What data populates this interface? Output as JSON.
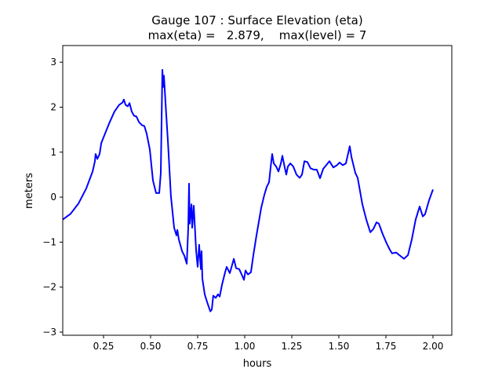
{
  "chart_data": {
    "type": "line",
    "title_line1": "Gauge 107 : Surface Elevation (eta)",
    "title_line2": "max(eta) =   2.879,    max(level) = 7",
    "xlabel": "hours",
    "ylabel": "meters",
    "xlim": [
      0.0333,
      2.1
    ],
    "ylim": [
      -3.07,
      3.37
    ],
    "xticks": [
      0.25,
      0.5,
      0.75,
      1.0,
      1.25,
      1.5,
      1.75,
      2.0
    ],
    "xtick_labels": [
      "0.25",
      "0.50",
      "0.75",
      "1.00",
      "1.25",
      "1.50",
      "1.75",
      "2.00"
    ],
    "yticks": [
      3,
      2,
      1,
      0,
      -1,
      -2,
      -3
    ],
    "ytick_labels": [
      "3",
      "2",
      "1",
      "0",
      "−1",
      "−2",
      "−3"
    ],
    "grid": false,
    "series": [
      {
        "name": "eta",
        "color": "#0000ff",
        "x": [
          0.033,
          0.075,
          0.117,
          0.158,
          0.192,
          0.204,
          0.208,
          0.217,
          0.229,
          0.238,
          0.258,
          0.283,
          0.308,
          0.333,
          0.35,
          0.358,
          0.367,
          0.379,
          0.388,
          0.4,
          0.412,
          0.425,
          0.438,
          0.454,
          0.467,
          0.479,
          0.496,
          0.5125,
          0.529,
          0.546,
          0.554,
          0.5625,
          0.567,
          0.571,
          0.579,
          0.592,
          0.608,
          0.625,
          0.6375,
          0.642,
          0.65,
          0.667,
          0.679,
          0.692,
          0.7,
          0.704,
          0.708,
          0.717,
          0.721,
          0.729,
          0.742,
          0.75,
          0.758,
          0.767,
          0.771,
          0.775,
          0.7875,
          0.8,
          0.817,
          0.825,
          0.833,
          0.846,
          0.858,
          0.867,
          0.879,
          0.896,
          0.904,
          0.921,
          0.933,
          0.942,
          0.954,
          0.971,
          0.988,
          0.996,
          1.004,
          1.017,
          1.033,
          1.046,
          1.0625,
          1.0875,
          1.104,
          1.117,
          1.129,
          1.1375,
          1.146,
          1.154,
          1.167,
          1.179,
          1.192,
          1.2,
          1.2125,
          1.221,
          1.229,
          1.242,
          1.258,
          1.275,
          1.292,
          1.304,
          1.317,
          1.333,
          1.35,
          1.367,
          1.383,
          1.4,
          1.417,
          1.433,
          1.45,
          1.471,
          1.49,
          1.504,
          1.521,
          1.5375,
          1.558,
          1.567,
          1.5875,
          1.6,
          1.625,
          1.646,
          1.667,
          1.683,
          1.7,
          1.7125,
          1.733,
          1.754,
          1.771,
          1.783,
          1.804,
          1.825,
          1.846,
          1.867,
          1.8875,
          1.908,
          1.929,
          1.946,
          1.958,
          1.979,
          2.0
        ],
        "y": [
          -0.5,
          -0.37,
          -0.14,
          0.19,
          0.57,
          0.8,
          0.96,
          0.85,
          0.96,
          1.2,
          1.41,
          1.67,
          1.9,
          2.05,
          2.1,
          2.17,
          2.05,
          2.02,
          2.09,
          1.9,
          1.81,
          1.79,
          1.67,
          1.6,
          1.58,
          1.41,
          1.06,
          0.37,
          0.09,
          0.09,
          0.54,
          2.83,
          2.45,
          2.7,
          2.1,
          1.23,
          0.02,
          -0.68,
          -0.85,
          -0.73,
          -0.94,
          -1.2,
          -1.3,
          -1.48,
          -0.68,
          0.3,
          -0.59,
          -0.16,
          -0.68,
          -0.19,
          -1.2,
          -1.55,
          -1.06,
          -1.6,
          -1.2,
          -1.81,
          -2.16,
          -2.33,
          -2.54,
          -2.5,
          -2.19,
          -2.24,
          -2.16,
          -2.21,
          -1.95,
          -1.67,
          -1.55,
          -1.69,
          -1.51,
          -1.37,
          -1.58,
          -1.6,
          -1.76,
          -1.84,
          -1.63,
          -1.72,
          -1.67,
          -1.29,
          -0.85,
          -0.24,
          0.05,
          0.23,
          0.33,
          0.66,
          0.96,
          0.75,
          0.68,
          0.57,
          0.75,
          0.92,
          0.66,
          0.5,
          0.68,
          0.75,
          0.68,
          0.5,
          0.43,
          0.5,
          0.8,
          0.78,
          0.64,
          0.61,
          0.61,
          0.42,
          0.63,
          0.71,
          0.8,
          0.66,
          0.71,
          0.77,
          0.71,
          0.75,
          1.13,
          0.89,
          0.54,
          0.43,
          -0.16,
          -0.5,
          -0.78,
          -0.71,
          -0.56,
          -0.59,
          -0.82,
          -1.03,
          -1.17,
          -1.25,
          -1.23,
          -1.3,
          -1.37,
          -1.29,
          -0.94,
          -0.5,
          -0.21,
          -0.43,
          -0.38,
          -0.07,
          0.17
        ]
      }
    ]
  }
}
